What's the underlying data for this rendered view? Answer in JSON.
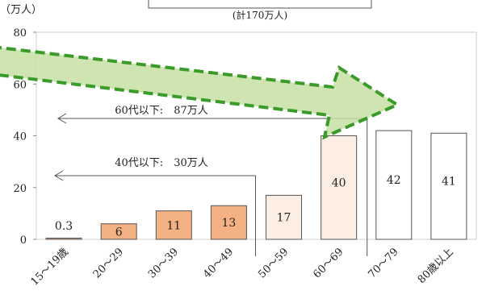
{
  "chart_data": {
    "type": "bar",
    "y_unit_label": "（万人）",
    "total_label": "(計170万人)",
    "categories": [
      "15～19歳",
      "20～29",
      "30～39",
      "40～49",
      "50～59",
      "60～69",
      "70～79",
      "80歳以上"
    ],
    "values": [
      0.3,
      6,
      11,
      13,
      17,
      40,
      42,
      41
    ],
    "value_labels": [
      "0.3",
      "6",
      "11",
      "13",
      "17",
      "40",
      "42",
      "41"
    ],
    "bar_colors": [
      "#f4b183",
      "#f4b183",
      "#f4b183",
      "#f4b183",
      "#fdeee3",
      "#fdeee3",
      "#ffffff",
      "#ffffff"
    ],
    "ylim": [
      0,
      80
    ],
    "yticks": [
      0,
      20,
      40,
      60,
      80
    ],
    "grid": false,
    "annotations": {
      "bracket_60": "60代以下:　87万人",
      "bracket_40": "40代以下:　30万人"
    },
    "colors": {
      "trend_arrow_fill": "#c5e0a5",
      "trend_arrow_stroke": "#3a9a2a",
      "bar_outline": "#555555",
      "axis": "#888888"
    }
  }
}
